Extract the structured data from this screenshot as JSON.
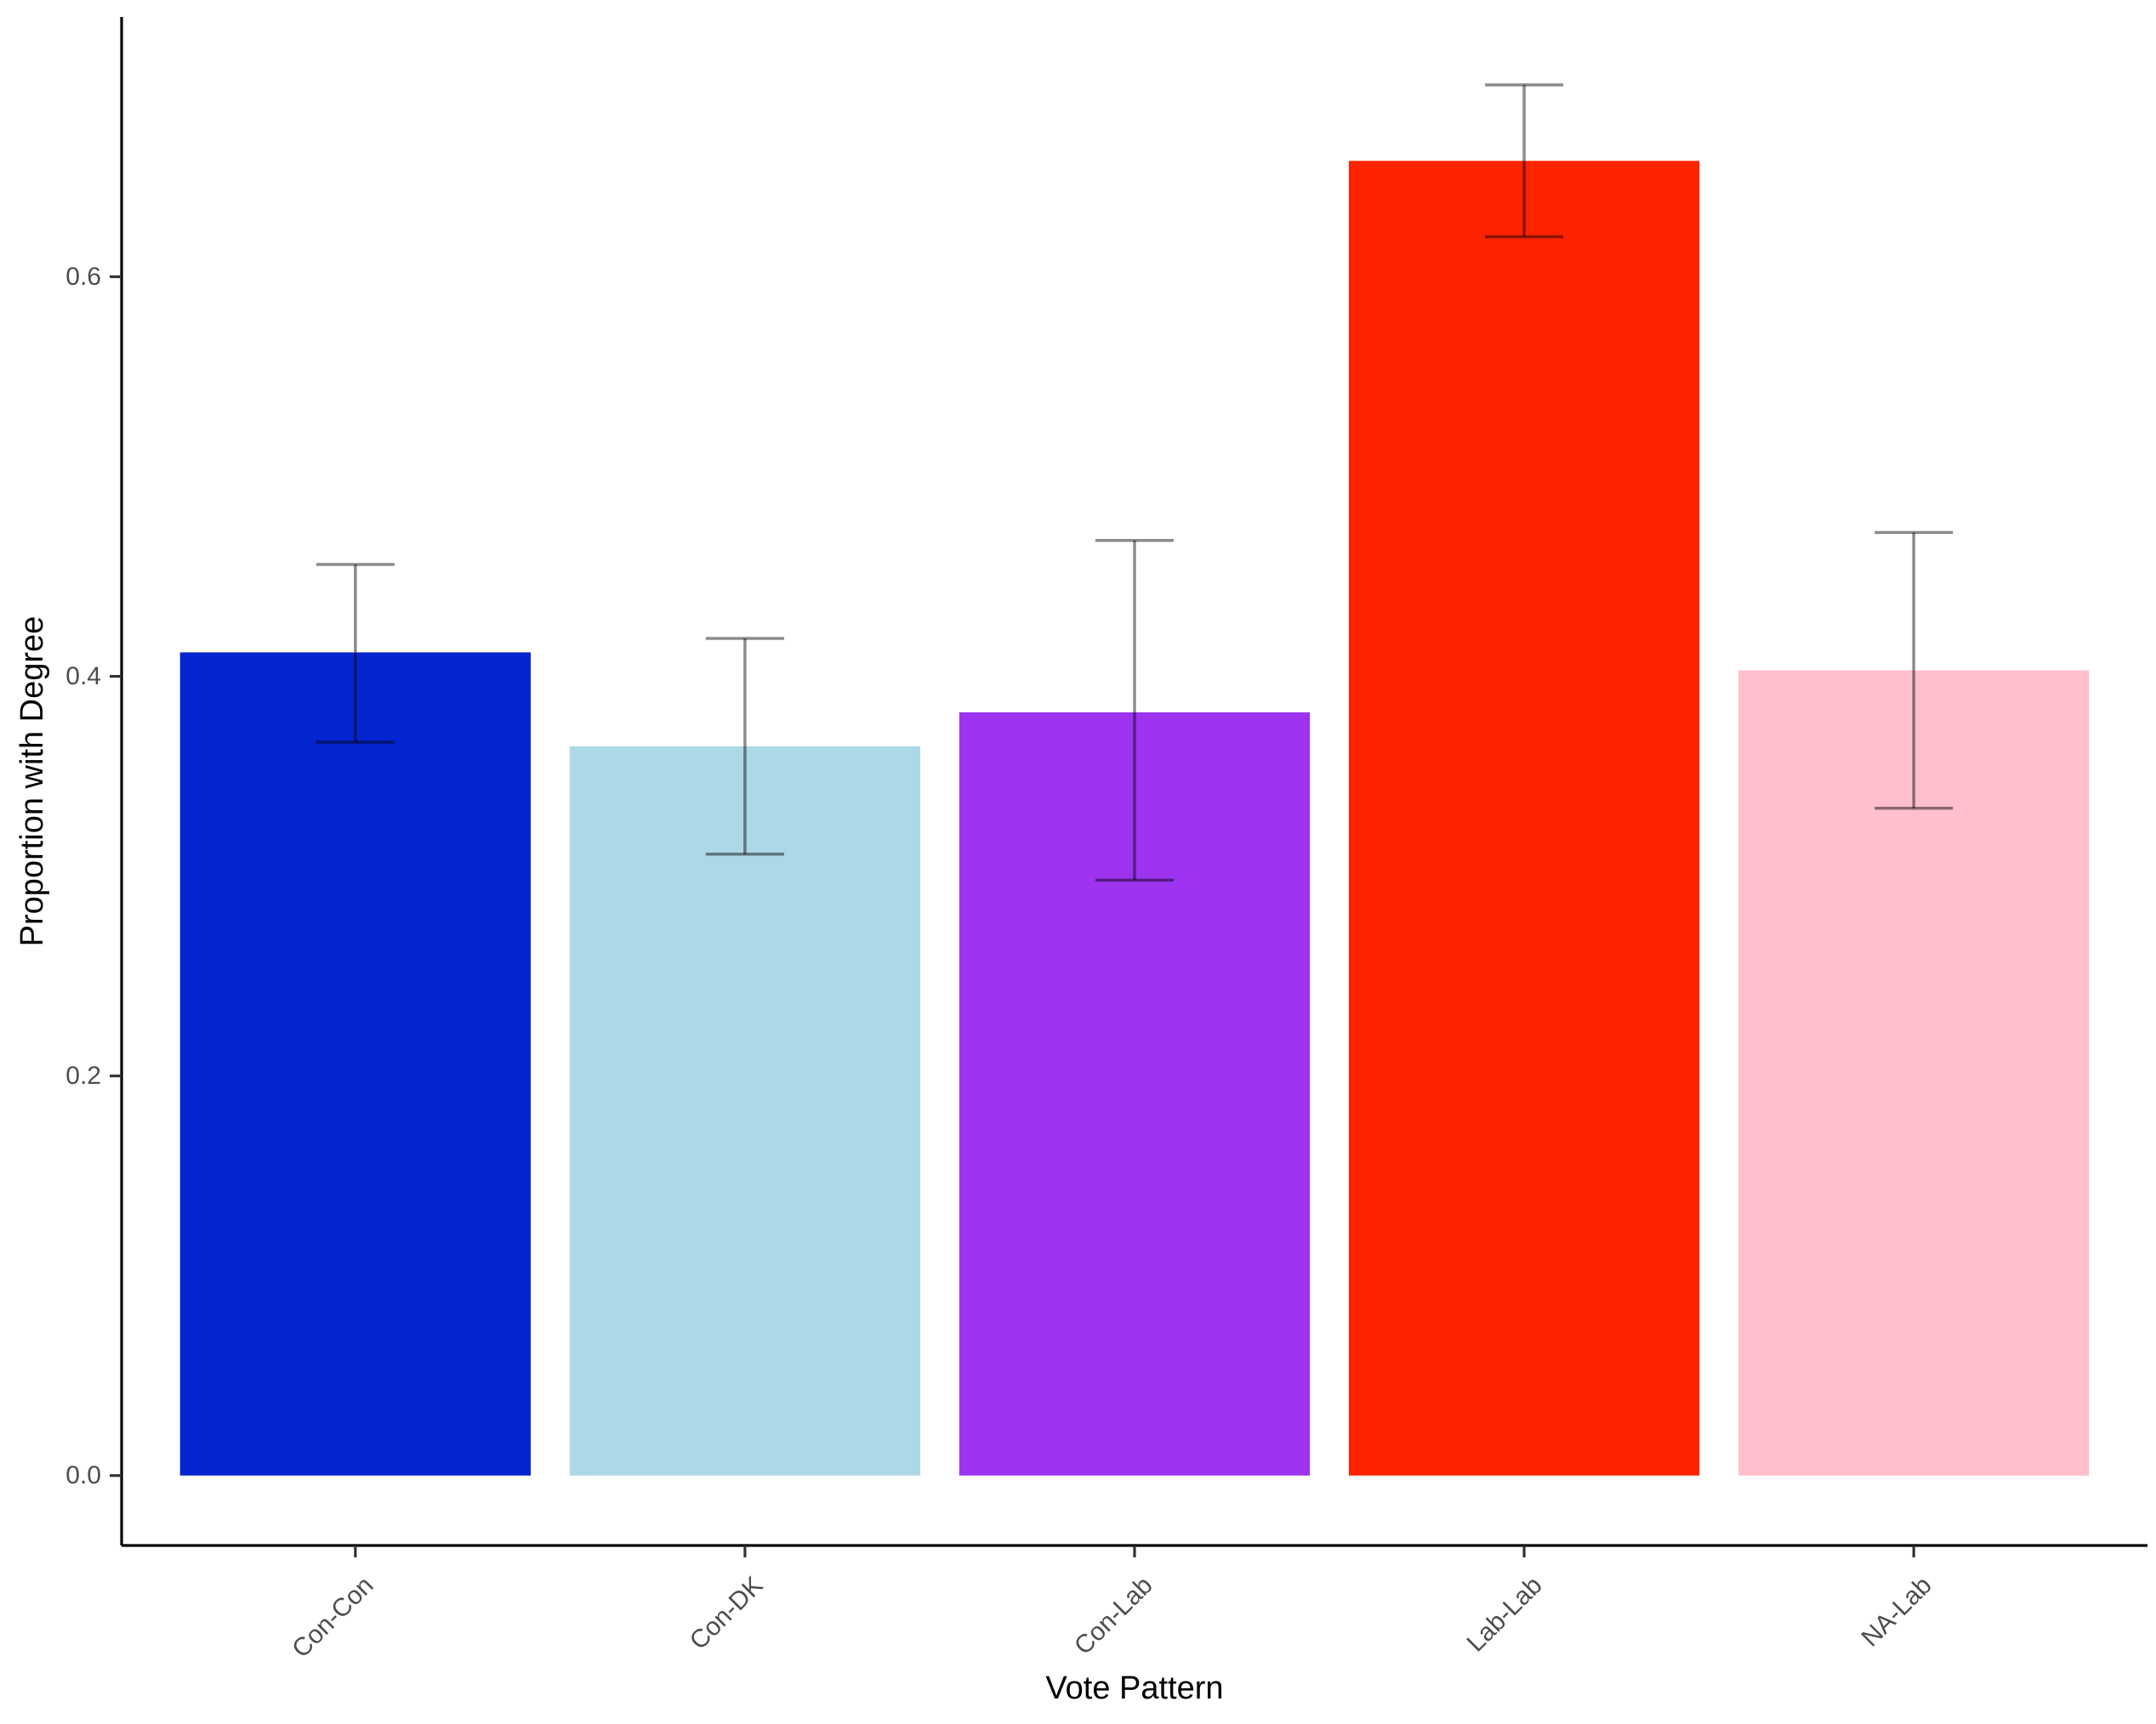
{
  "chart_data": {
    "type": "bar",
    "title": "",
    "xlabel": "Vote Pattern",
    "ylabel": "Proportion with Degree",
    "categories": [
      "Con-Con",
      "Con-DK",
      "Con-Lab",
      "Lab-Lab",
      "NA-Lab"
    ],
    "values": [
      0.412,
      0.365,
      0.382,
      0.658,
      0.403
    ],
    "error_low": [
      0.367,
      0.311,
      0.298,
      0.62,
      0.334
    ],
    "error_high": [
      0.456,
      0.419,
      0.468,
      0.696,
      0.472
    ],
    "colors": [
      "#0424CF",
      "#ADD8E6",
      "#9D33EE",
      "#FF2400",
      "#FFC0CB"
    ],
    "ylim": [
      -0.035,
      0.73
    ],
    "yticks": [
      0.0,
      0.2,
      0.4,
      0.6
    ],
    "ytick_labels": [
      "0.0",
      "0.2",
      "0.4",
      "0.6"
    ],
    "grid": false,
    "legend": "none"
  }
}
